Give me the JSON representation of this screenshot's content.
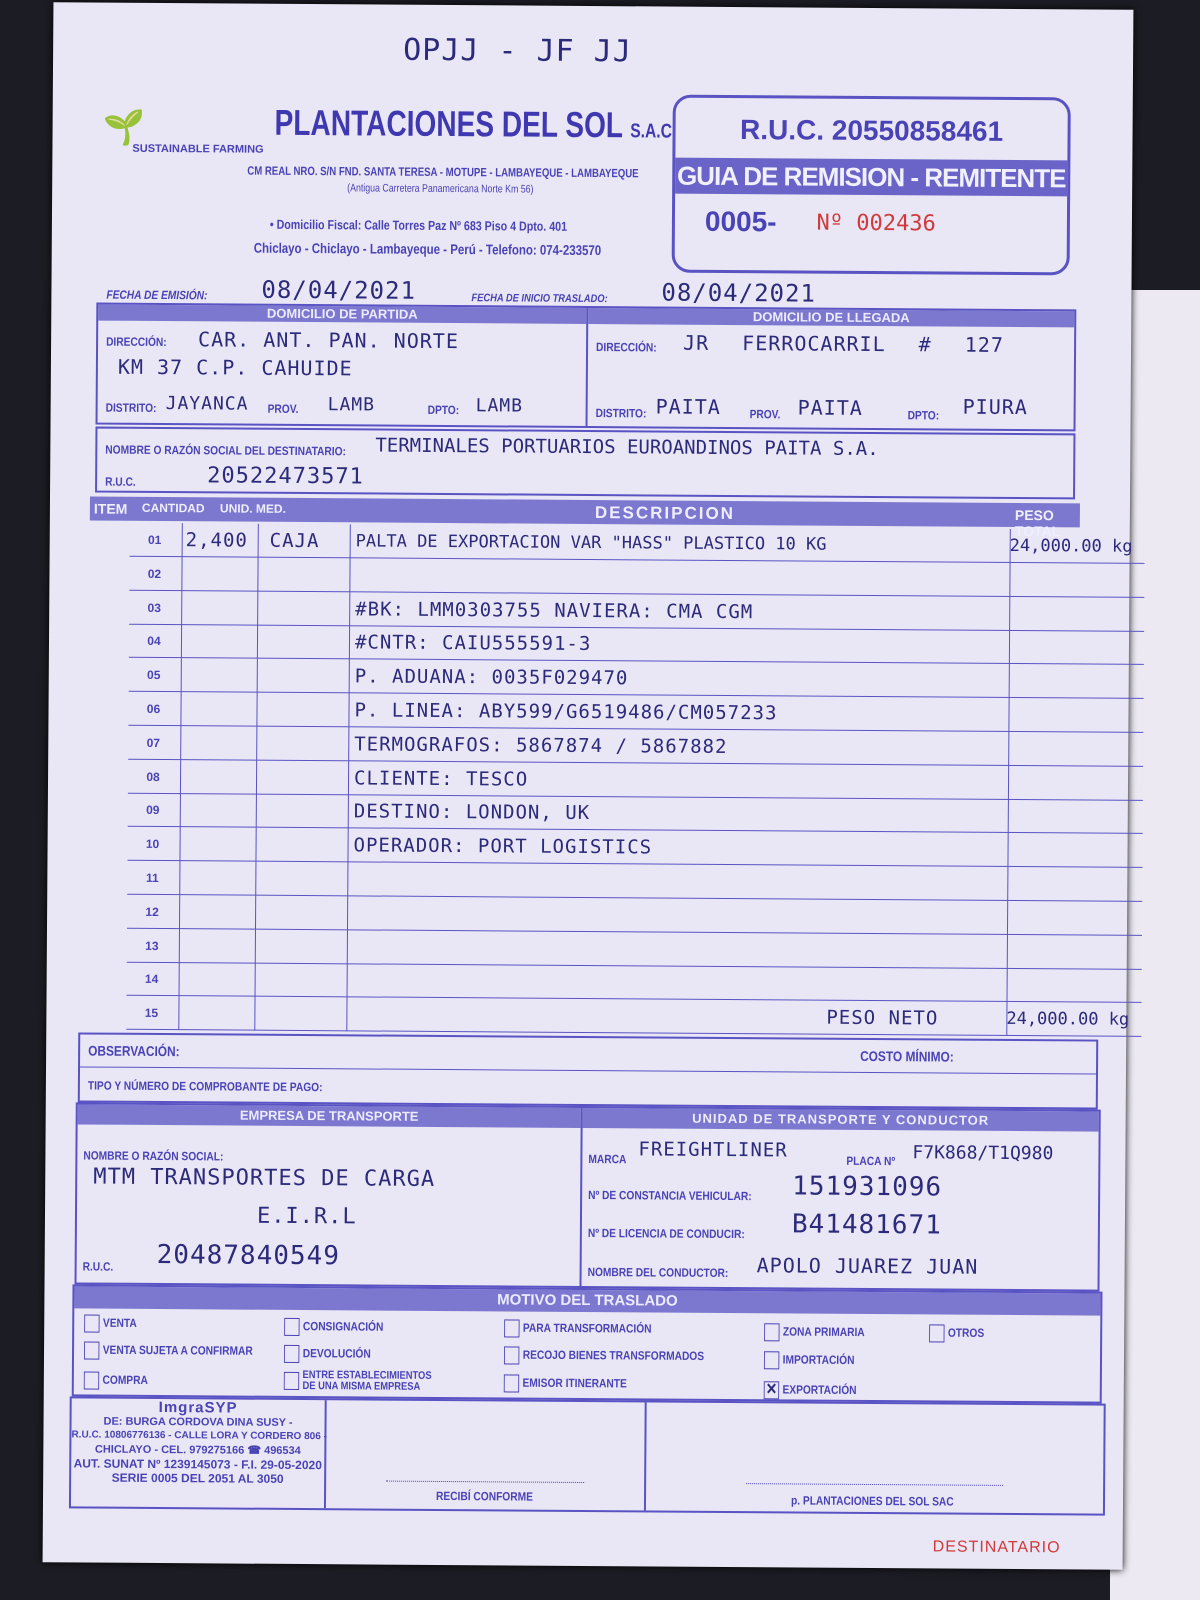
{
  "handwritten_top": "OPJJ - JF JJ",
  "company": {
    "name": "PLANTACIONES DEL SOL",
    "suffix": "S.A.C.",
    "tagline": "SUSTAINABLE FARMING",
    "address1": "CM REAL NRO. S/N FND. SANTA TERESA - MOTUPE - LAMBAYEQUE - LAMBAYEQUE",
    "address2": "(Antigua Carretera Panamericana Norte Km 56)",
    "fiscal": "• Domicilio Fiscal: Calle Torres Paz Nº 683 Piso 4 Dpto. 401",
    "city": "Chiclayo - Chiclayo - Lambayeque - Perú - Telefono: 074-233570"
  },
  "ruc_box": {
    "ruc": "R.U.C. 20550858461",
    "doc_type": "GUIA DE REMISION - REMITENTE",
    "serie": "0005-",
    "number_label": "Nº",
    "number": "002436"
  },
  "dates": {
    "emision_label": "FECHA DE EMISIÓN:",
    "emision": "08/04/2021",
    "inicio_label": "FECHA DE INICIO TRASLADO:",
    "inicio": "08/04/2021"
  },
  "partida": {
    "title": "DOMICILIO DE PARTIDA",
    "direccion_label": "DIRECCIÓN:",
    "direccion1": "CAR. ANT. PAN. NORTE",
    "direccion2": "KM 37 C.P. CAHUIDE",
    "distrito_label": "DISTRITO:",
    "distrito": "JAYANCA",
    "prov_label": "PROV.",
    "prov": "LAMB",
    "dpto_label": "DPTO:",
    "dpto": "LAMB"
  },
  "llegada": {
    "title": "DOMICILIO DE LLEGADA",
    "direccion_label": "DIRECCIÓN:",
    "direccion1": "JR FERROCARRIL # 127",
    "distrito_label": "DISTRITO:",
    "distrito": "PAITA",
    "prov_label": "PROV.",
    "prov": "PAITA",
    "dpto_label": "DPTO:",
    "dpto": "PIURA"
  },
  "destinatario": {
    "nombre_label": "NOMBRE O RAZÓN SOCIAL DEL DESTINATARIO:",
    "nombre": "TERMINALES PORTUARIOS EUROANDINOS PAITA S.A.",
    "ruc_label": "R.U.C.",
    "ruc": "20522473571"
  },
  "table": {
    "headers": [
      "ITEM",
      "CANTIDAD",
      "UNID. MED.",
      "DESCRIPCION",
      "PESO TOTAL"
    ],
    "rows": [
      {
        "item": "01",
        "cantidad": "2,400",
        "unidad": "CAJA",
        "descripcion": "PALTA DE EXPORTACION VAR \"HASS\" PLASTICO 10 KG",
        "peso": "24,000.00 kg"
      },
      {
        "item": "02",
        "cantidad": "",
        "unidad": "",
        "descripcion": "",
        "peso": ""
      },
      {
        "item": "03",
        "cantidad": "",
        "unidad": "",
        "descripcion": "#BK: LMM0303755   NAVIERA: CMA CGM",
        "peso": ""
      },
      {
        "item": "04",
        "cantidad": "",
        "unidad": "",
        "descripcion": "#CNTR: CAIU555591-3",
        "peso": ""
      },
      {
        "item": "05",
        "cantidad": "",
        "unidad": "",
        "descripcion": "P. ADUANA: 0035F029470",
        "peso": ""
      },
      {
        "item": "06",
        "cantidad": "",
        "unidad": "",
        "descripcion": "P. LINEA: ABY599/G6519486/CM057233",
        "peso": ""
      },
      {
        "item": "07",
        "cantidad": "",
        "unidad": "",
        "descripcion": "TERMOGRAFOS: 5867874 / 5867882",
        "peso": ""
      },
      {
        "item": "08",
        "cantidad": "",
        "unidad": "",
        "descripcion": "CLIENTE: TESCO",
        "peso": ""
      },
      {
        "item": "09",
        "cantidad": "",
        "unidad": "",
        "descripcion": "DESTINO: LONDON, UK",
        "peso": ""
      },
      {
        "item": "10",
        "cantidad": "",
        "unidad": "",
        "descripcion": "OPERADOR: PORT LOGISTICS",
        "peso": ""
      },
      {
        "item": "11",
        "cantidad": "",
        "unidad": "",
        "descripcion": "",
        "peso": ""
      },
      {
        "item": "12",
        "cantidad": "",
        "unidad": "",
        "descripcion": "",
        "peso": ""
      },
      {
        "item": "13",
        "cantidad": "",
        "unidad": "",
        "descripcion": "",
        "peso": ""
      },
      {
        "item": "14",
        "cantidad": "",
        "unidad": "",
        "descripcion": "",
        "peso": ""
      },
      {
        "item": "15",
        "cantidad": "",
        "unidad": "",
        "descripcion": "PESO NETO",
        "peso": "24,000.00 kg"
      }
    ]
  },
  "obs": {
    "observacion_label": "OBSERVACIÓN:",
    "costo_label": "COSTO MÍNIMO:",
    "tipo_label": "TIPO Y NÚMERO DE COMPROBANTE DE PAGO:"
  },
  "transporte": {
    "title": "EMPRESA DE TRANSPORTE",
    "nombre_label": "NOMBRE O RAZÓN SOCIAL:",
    "nombre1": "MTM TRANSPORTES DE CARGA",
    "nombre2": "E.I.R.L",
    "ruc_label": "R.U.C.",
    "ruc": "20487840549"
  },
  "unidad": {
    "title": "UNIDAD DE TRANSPORTE Y CONDUCTOR",
    "marca_label": "MARCA",
    "marca": "FREIGHTLINER",
    "placa_label": "PLACA Nº",
    "placa": "F7K868/T1Q980",
    "constancia_label": "Nº DE CONSTANCIA VEHICULAR:",
    "constancia": "151931096",
    "licencia_label": "Nº DE LICENCIA DE CONDUCIR:",
    "licencia": "B41481671",
    "conductor_label": "NOMBRE DEL CONDUCTOR:",
    "conductor": "APOLO JUAREZ JUAN"
  },
  "motivo": {
    "title": "MOTIVO DEL TRASLADO",
    "options": [
      {
        "label": "VENTA",
        "checked": false
      },
      {
        "label": "VENTA SUJETA A CONFIRMAR",
        "checked": false
      },
      {
        "label": "COMPRA",
        "checked": false
      },
      {
        "label": "CONSIGNACIÓN",
        "checked": false
      },
      {
        "label": "DEVOLUCIÓN",
        "checked": false
      },
      {
        "label": "ENTRE ESTABLECIMIENTOS DE UNA MISMA EMPRESA",
        "checked": false
      },
      {
        "label": "PARA TRANSFORMACIÓN",
        "checked": false
      },
      {
        "label": "RECOJO BIENES TRANSFORMADOS",
        "checked": false
      },
      {
        "label": "EMISOR ITINERANTE",
        "checked": false
      },
      {
        "label": "ZONA PRIMARIA",
        "checked": false
      },
      {
        "label": "IMPORTACIÓN",
        "checked": false
      },
      {
        "label": "EXPORTACIÓN",
        "checked": true
      },
      {
        "label": "OTROS",
        "checked": false
      }
    ]
  },
  "printer": {
    "brand": "ImgraSYP",
    "line1": "DE: BURGA CORDOVA DINA SUSY -",
    "line2": "R.U.C. 10806776136 - CALLE LORA Y CORDERO 806 -",
    "line3": "CHICLAYO - CEL. 979275166 ☎ 496534",
    "line4": "AUT. SUNAT Nº 1239145073 - F.I. 29-05-2020",
    "line5": "SERIE 0005 DEL 2051 AL 3050"
  },
  "signatures": {
    "recibi": "RECIBÍ CONFORME",
    "firma": "p. PLANTACIONES DEL SOL SAC"
  },
  "copy_label": "DESTINATARIO",
  "colors": {
    "ink": "#4a43b5",
    "handwriting": "#2c2a7a",
    "red": "#d03a3a",
    "paper": "#e9e6f5"
  }
}
